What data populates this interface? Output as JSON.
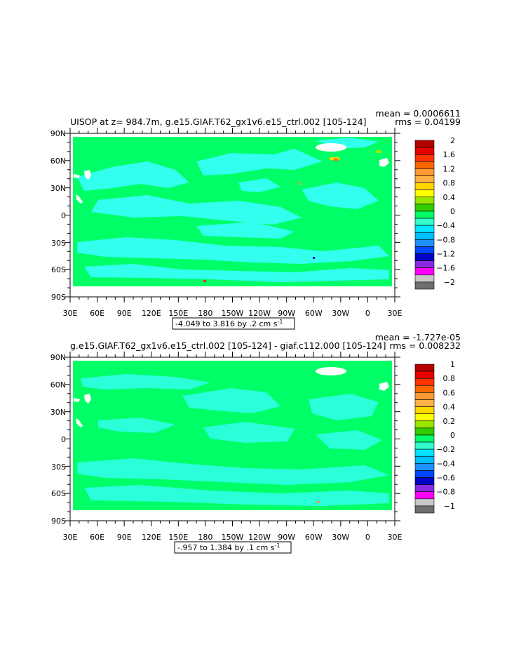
{
  "panels": [
    {
      "title": "UISOP at z= 984.7m, g.e15.GIAF.T62_gx1v6.e15_ctrl.002  [105-124]",
      "mean": "mean = 0.0006611",
      "rms": "rms = 0.04199",
      "range_label": "-4.049 to 3.816 by .2 cm s",
      "range_sup": "-1",
      "colorbar_labels": [
        "2",
        "1.6",
        "1.2",
        "0.8",
        "0.4",
        "0",
        "-0.4",
        "-0.8",
        "-1.2",
        "-1.6",
        "-2"
      ]
    },
    {
      "title": "g.e15.GIAF.T62_gx1v6.e15_ctrl.002  [105-124]  -  giaf.c112.000  [105-124]",
      "mean": "mean = -1.727e-05",
      "rms": "rms = 0.008232",
      "range_label": "-.957 to 1.384 by .1 cm s",
      "range_sup": "-1",
      "colorbar_labels": [
        "1",
        "0.8",
        "0.6",
        "0.4",
        "0.2",
        "0",
        "-0.2",
        "-0.4",
        "-0.6",
        "-0.8",
        "-1"
      ]
    }
  ],
  "axes": {
    "lon_labels": [
      "30E",
      "60E",
      "90E",
      "120E",
      "150E",
      "180",
      "150W",
      "120W",
      "90W",
      "60W",
      "30W",
      "0",
      "30E"
    ],
    "lat_labels": [
      "90N",
      "60N",
      "30N",
      "0",
      "30S",
      "60S",
      "90S"
    ]
  },
  "colors": {
    "colorbar": [
      "#b30000",
      "#e60000",
      "#ff3300",
      "#ff6600",
      "#ff9933",
      "#ffb347",
      "#ffd700",
      "#ffff00",
      "#99e600",
      "#33cc00",
      "#00ff66",
      "#33ffcc",
      "#00e5ff",
      "#00bfff",
      "#1e90ff",
      "#0047ff",
      "#0000c8",
      "#8a2be2",
      "#ff00ff",
      "#c8c8c8",
      "#6e6e6e"
    ],
    "ocean_green": "#00ff66",
    "cyan": "#33ffee"
  },
  "chart_data": [
    {
      "type": "heatmap",
      "title": "UISOP at z= 984.7m, g.e15.GIAF.T62_gx1v6.e15_ctrl.002  [105-124]",
      "x_ticks": [
        "30E",
        "60E",
        "90E",
        "120E",
        "150E",
        "180",
        "150W",
        "120W",
        "90W",
        "60W",
        "30W",
        "0",
        "30E"
      ],
      "y_ticks": [
        "90N",
        "60N",
        "30N",
        "0",
        "30S",
        "60S",
        "90S"
      ],
      "colorbar_levels": [
        2,
        1.6,
        1.2,
        0.8,
        0.4,
        0,
        -0.4,
        -0.8,
        -1.2,
        -1.6,
        -2
      ],
      "range": [
        -4.049,
        3.816
      ],
      "interval": 0.2,
      "units": "cm s-1",
      "mean": 0.0006611,
      "rms": 0.04199
    },
    {
      "type": "heatmap",
      "title": "g.e15.GIAF.T62_gx1v6.e15_ctrl.002  [105-124]  -  giaf.c112.000  [105-124]",
      "x_ticks": [
        "30E",
        "60E",
        "90E",
        "120E",
        "150E",
        "180",
        "150W",
        "120W",
        "90W",
        "60W",
        "30W",
        "0",
        "30E"
      ],
      "y_ticks": [
        "90N",
        "60N",
        "30N",
        "0",
        "30S",
        "60S",
        "90S"
      ],
      "colorbar_levels": [
        1,
        0.8,
        0.6,
        0.4,
        0.2,
        0,
        -0.2,
        -0.4,
        -0.6,
        -0.8,
        -1
      ],
      "range": [
        -0.957,
        1.384
      ],
      "interval": 0.1,
      "units": "cm s-1",
      "mean": -1.727e-05,
      "rms": 0.008232
    }
  ]
}
